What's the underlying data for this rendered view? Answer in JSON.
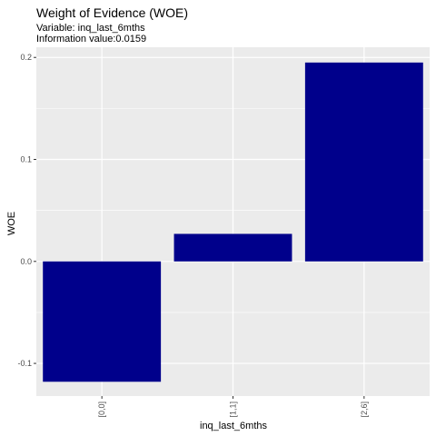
{
  "chart_data": {
    "type": "bar",
    "title": "Weight of Evidence (WOE)",
    "subtitle_lines": [
      "Variable: inq_last_6mths",
      "Information value:0.0159"
    ],
    "xlabel": "inq_last_6mths",
    "ylabel": "WOE",
    "categories": [
      "[0,0]",
      "[1,1]",
      "[2,6]"
    ],
    "values": [
      -0.118,
      0.027,
      0.195
    ],
    "ylim": [
      -0.132,
      0.21
    ],
    "yticks": [
      -0.1,
      0.0,
      0.1,
      0.2
    ],
    "ytick_labels": [
      "-0.1",
      "0.0",
      "0.1",
      "0.2"
    ],
    "grid": true,
    "bar_color": "#00008B",
    "panel_color": "#EBEBEB",
    "grid_color": "#FFFFFF"
  }
}
